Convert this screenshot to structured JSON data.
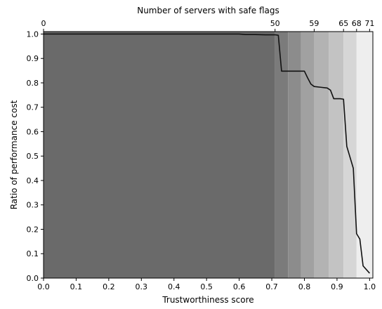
{
  "chart_data": {
    "type": "line",
    "xlabel": "Trustworthiness score",
    "ylabel": "Ratio of performance cost",
    "top_xlabel": "Number of servers with safe flags",
    "xlim": [
      0.0,
      1.01
    ],
    "ylim": [
      0.0,
      1.01
    ],
    "x_ticks": [
      "0.0",
      "0.1",
      "0.2",
      "0.3",
      "0.4",
      "0.5",
      "0.6",
      "0.7",
      "0.8",
      "0.9",
      "1.0"
    ],
    "y_ticks": [
      "0.0",
      "0.1",
      "0.2",
      "0.3",
      "0.4",
      "0.5",
      "0.6",
      "0.7",
      "0.8",
      "0.9",
      "1.0"
    ],
    "top_ticks": [
      {
        "label": "0",
        "x": 0.0
      },
      {
        "label": "50",
        "x": 0.71
      },
      {
        "label": "59",
        "x": 0.83
      },
      {
        "label": "65",
        "x": 0.92
      },
      {
        "label": "68",
        "x": 0.96
      },
      {
        "label": "71",
        "x": 1.0
      }
    ],
    "bands": [
      {
        "x0": 0.0,
        "x1": 0.71,
        "color": "#6a6a6a"
      },
      {
        "x0": 0.71,
        "x1": 0.75,
        "color": "#7b7b7b"
      },
      {
        "x0": 0.75,
        "x1": 0.79,
        "color": "#8c8c8c"
      },
      {
        "x0": 0.79,
        "x1": 0.83,
        "color": "#a1a1a1"
      },
      {
        "x0": 0.83,
        "x1": 0.875,
        "color": "#b3b3b3"
      },
      {
        "x0": 0.875,
        "x1": 0.92,
        "color": "#c3c3c3"
      },
      {
        "x0": 0.92,
        "x1": 0.96,
        "color": "#d6d6d6"
      },
      {
        "x0": 0.96,
        "x1": 1.01,
        "color": "#eeeeee"
      }
    ],
    "series": [
      {
        "color": "#111111",
        "x": [
          0.0,
          0.6,
          0.62,
          0.65,
          0.68,
          0.71,
          0.72,
          0.73,
          0.75,
          0.8,
          0.81,
          0.82,
          0.83,
          0.85,
          0.87,
          0.88,
          0.89,
          0.91,
          0.92,
          0.93,
          0.95,
          0.96,
          0.97,
          0.98,
          1.0
        ],
        "y": [
          1.0,
          1.0,
          0.998,
          0.998,
          0.997,
          0.997,
          0.995,
          0.848,
          0.848,
          0.848,
          0.82,
          0.795,
          0.785,
          0.782,
          0.779,
          0.77,
          0.735,
          0.735,
          0.733,
          0.54,
          0.45,
          0.182,
          0.16,
          0.05,
          0.02
        ]
      }
    ],
    "grid": false
  }
}
